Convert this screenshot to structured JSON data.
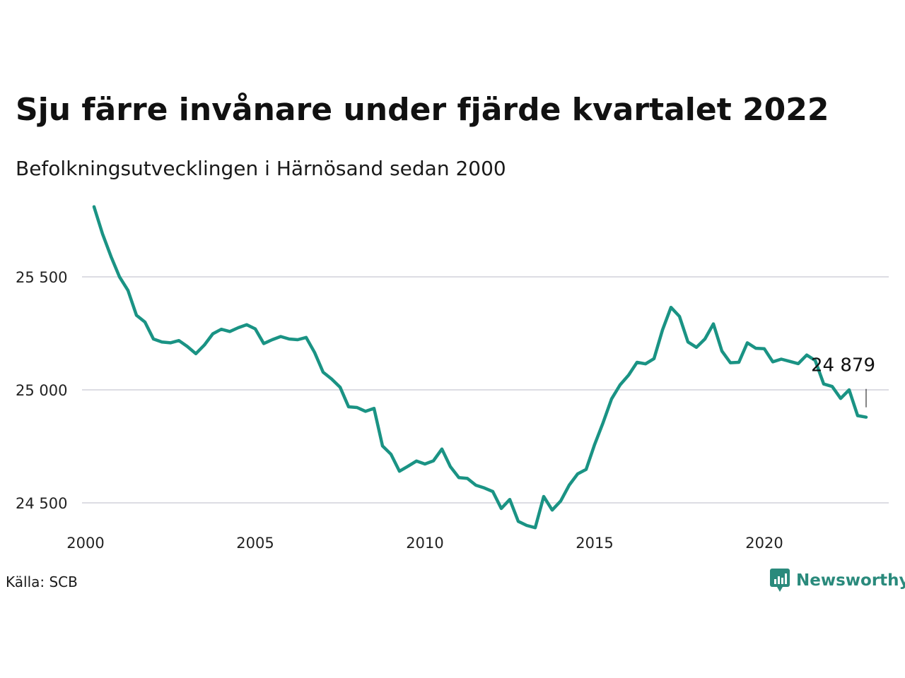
{
  "header": {
    "title": "Sju färre invånare under fjärde kvartalet 2022",
    "subtitle": "Befolkningsutvecklingen i Härnösand sedan 2000"
  },
  "footer": {
    "source": "Källa: SCB",
    "brand": "Newsworthy",
    "brand_icon": "newsworthy-logo-icon"
  },
  "colors": {
    "line": "#1a9384",
    "grid": "#dddde3",
    "brand": "#2a8a7c"
  },
  "chart_data": {
    "type": "line",
    "xlim": [
      2000,
      2023.25
    ],
    "ylim": [
      24400,
      25800
    ],
    "x_ticks": [
      2000,
      2005,
      2010,
      2015,
      2020
    ],
    "x_tick_labels": [
      "2000",
      "2005",
      "2010",
      "2015",
      "2020"
    ],
    "y_ticks": [
      24500,
      25000,
      25500
    ],
    "y_tick_labels": [
      "24 500",
      "25 000",
      "25 500"
    ],
    "grid": "horizontal",
    "last_value_label": "24 879",
    "series": [
      {
        "values": [
          [
            2000.25,
            25810
          ],
          [
            2000.5,
            25690
          ],
          [
            2000.75,
            25590
          ],
          [
            2001.0,
            25500
          ],
          [
            2001.25,
            25440
          ],
          [
            2001.5,
            25330
          ],
          [
            2001.75,
            25300
          ],
          [
            2002.0,
            25225
          ],
          [
            2002.25,
            25212
          ],
          [
            2002.5,
            25208
          ],
          [
            2002.75,
            25218
          ],
          [
            2003.0,
            25192
          ],
          [
            2003.25,
            25160
          ],
          [
            2003.5,
            25198
          ],
          [
            2003.75,
            25248
          ],
          [
            2004.0,
            25268
          ],
          [
            2004.25,
            25258
          ],
          [
            2004.5,
            25275
          ],
          [
            2004.75,
            25288
          ],
          [
            2005.0,
            25270
          ],
          [
            2005.25,
            25205
          ],
          [
            2005.5,
            25222
          ],
          [
            2005.75,
            25236
          ],
          [
            2006.0,
            25225
          ],
          [
            2006.25,
            25222
          ],
          [
            2006.5,
            25232
          ],
          [
            2006.75,
            25165
          ],
          [
            2007.0,
            25078
          ],
          [
            2007.25,
            25048
          ],
          [
            2007.5,
            25012
          ],
          [
            2007.75,
            24925
          ],
          [
            2008.0,
            24922
          ],
          [
            2008.25,
            24905
          ],
          [
            2008.5,
            24918
          ],
          [
            2008.75,
            24752
          ],
          [
            2009.0,
            24715
          ],
          [
            2009.25,
            24640
          ],
          [
            2009.5,
            24662
          ],
          [
            2009.75,
            24685
          ],
          [
            2010.0,
            24672
          ],
          [
            2010.25,
            24686
          ],
          [
            2010.5,
            24738
          ],
          [
            2010.75,
            24660
          ],
          [
            2011.0,
            24612
          ],
          [
            2011.25,
            24608
          ],
          [
            2011.5,
            24578
          ],
          [
            2011.75,
            24566
          ],
          [
            2012.0,
            24550
          ],
          [
            2012.25,
            24475
          ],
          [
            2012.5,
            24515
          ],
          [
            2012.75,
            24418
          ],
          [
            2013.0,
            24400
          ],
          [
            2013.25,
            24390
          ],
          [
            2013.5,
            24528
          ],
          [
            2013.75,
            24468
          ],
          [
            2014.0,
            24508
          ],
          [
            2014.25,
            24578
          ],
          [
            2014.5,
            24628
          ],
          [
            2014.75,
            24648
          ],
          [
            2015.0,
            24758
          ],
          [
            2015.25,
            24855
          ],
          [
            2015.5,
            24960
          ],
          [
            2015.75,
            25022
          ],
          [
            2016.0,
            25065
          ],
          [
            2016.25,
            25122
          ],
          [
            2016.5,
            25115
          ],
          [
            2016.75,
            25138
          ],
          [
            2017.0,
            25265
          ],
          [
            2017.25,
            25365
          ],
          [
            2017.5,
            25325
          ],
          [
            2017.75,
            25212
          ],
          [
            2018.0,
            25188
          ],
          [
            2018.25,
            25225
          ],
          [
            2018.5,
            25292
          ],
          [
            2018.75,
            25172
          ],
          [
            2019.0,
            25120
          ],
          [
            2019.25,
            25122
          ],
          [
            2019.5,
            25208
          ],
          [
            2019.75,
            25184
          ],
          [
            2020.0,
            25182
          ],
          [
            2020.25,
            25124
          ],
          [
            2020.5,
            25136
          ],
          [
            2020.75,
            25126
          ],
          [
            2021.0,
            25116
          ],
          [
            2021.25,
            25154
          ],
          [
            2021.5,
            25130
          ],
          [
            2021.75,
            25026
          ],
          [
            2022.0,
            25015
          ],
          [
            2022.25,
            24962
          ],
          [
            2022.5,
            25000
          ],
          [
            2022.75,
            24886
          ],
          [
            2023.0,
            24879
          ]
        ]
      }
    ]
  }
}
